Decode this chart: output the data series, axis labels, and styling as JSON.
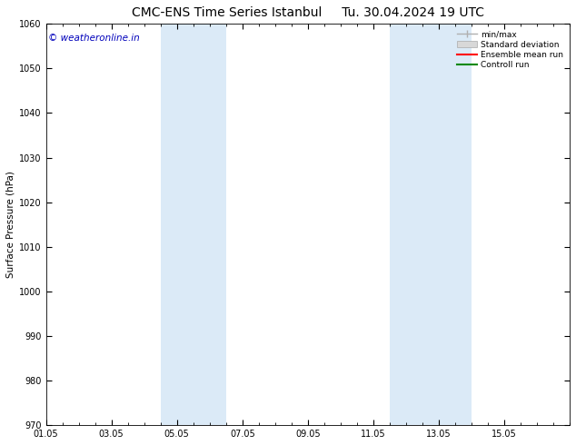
{
  "title": "CMC-ENS Time Series Istanbul",
  "title2": "Tu. 30.04.2024 19 UTC",
  "ylabel": "Surface Pressure (hPa)",
  "ylim": [
    970,
    1060
  ],
  "yticks": [
    970,
    980,
    990,
    1000,
    1010,
    1020,
    1030,
    1040,
    1050,
    1060
  ],
  "xtick_labels": [
    "01.05",
    "03.05",
    "05.05",
    "07.05",
    "09.05",
    "11.05",
    "13.05",
    "15.05"
  ],
  "xtick_positions": [
    0,
    2,
    4,
    6,
    8,
    10,
    12,
    14
  ],
  "xlim": [
    0,
    16
  ],
  "shaded_regions": [
    {
      "xstart": 3.5,
      "xend": 5.5
    },
    {
      "xstart": 10.5,
      "xend": 13.0
    }
  ],
  "shaded_color": "#dbeaf7",
  "watermark_text": "© weatheronline.in",
  "watermark_color": "#0000bb",
  "watermark_fontsize": 7.5,
  "legend_entries": [
    "min/max",
    "Standard deviation",
    "Ensemble mean run",
    "Controll run"
  ],
  "legend_line_colors": [
    "#b0b0b0",
    "#cccccc",
    "#ff0000",
    "#008800"
  ],
  "background_color": "#ffffff",
  "plot_bg_color": "#ffffff",
  "title_fontsize": 10,
  "axis_fontsize": 7,
  "ylabel_fontsize": 7.5
}
